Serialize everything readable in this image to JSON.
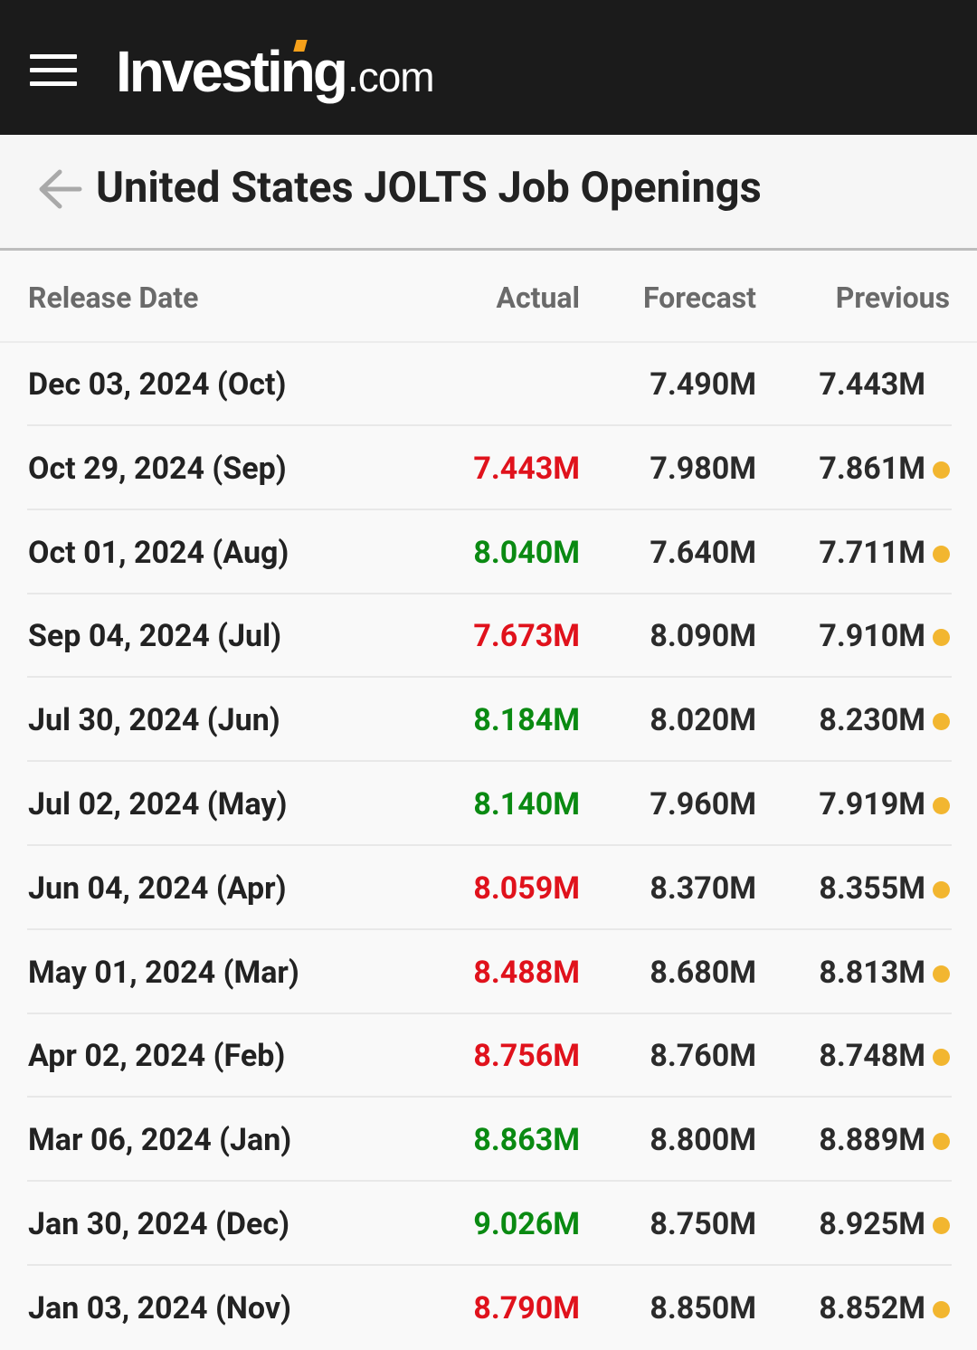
{
  "colors": {
    "header_bg": "#1b1b1b",
    "logo_accent": "#f5a01a",
    "positive": "#0a8a12",
    "negative": "#e0121c",
    "revised_dot": "#f2b630"
  },
  "header": {
    "logo_main": "Investing",
    "logo_suffix": ".com",
    "menu_icon": "hamburger-menu-icon"
  },
  "page": {
    "title": "United States JOLTS Job Openings",
    "back_icon": "arrow-left-icon"
  },
  "table": {
    "columns": [
      "Release Date",
      "Actual",
      "Forecast",
      "Previous"
    ],
    "rows": [
      {
        "date": "Dec 03, 2024 (Oct)",
        "actual": "",
        "actual_status": "none",
        "forecast": "7.490M",
        "previous": "7.443M",
        "revised": false
      },
      {
        "date": "Oct 29, 2024 (Sep)",
        "actual": "7.443M",
        "actual_status": "negative",
        "forecast": "7.980M",
        "previous": "7.861M",
        "revised": true
      },
      {
        "date": "Oct 01, 2024 (Aug)",
        "actual": "8.040M",
        "actual_status": "positive",
        "forecast": "7.640M",
        "previous": "7.711M",
        "revised": true
      },
      {
        "date": "Sep 04, 2024 (Jul)",
        "actual": "7.673M",
        "actual_status": "negative",
        "forecast": "8.090M",
        "previous": "7.910M",
        "revised": true
      },
      {
        "date": "Jul 30, 2024 (Jun)",
        "actual": "8.184M",
        "actual_status": "positive",
        "forecast": "8.020M",
        "previous": "8.230M",
        "revised": true
      },
      {
        "date": "Jul 02, 2024 (May)",
        "actual": "8.140M",
        "actual_status": "positive",
        "forecast": "7.960M",
        "previous": "7.919M",
        "revised": true
      },
      {
        "date": "Jun 04, 2024 (Apr)",
        "actual": "8.059M",
        "actual_status": "negative",
        "forecast": "8.370M",
        "previous": "8.355M",
        "revised": true
      },
      {
        "date": "May 01, 2024 (Mar)",
        "actual": "8.488M",
        "actual_status": "negative",
        "forecast": "8.680M",
        "previous": "8.813M",
        "revised": true
      },
      {
        "date": "Apr 02, 2024 (Feb)",
        "actual": "8.756M",
        "actual_status": "negative",
        "forecast": "8.760M",
        "previous": "8.748M",
        "revised": true
      },
      {
        "date": "Mar 06, 2024 (Jan)",
        "actual": "8.863M",
        "actual_status": "positive",
        "forecast": "8.800M",
        "previous": "8.889M",
        "revised": true
      },
      {
        "date": "Jan 30, 2024 (Dec)",
        "actual": "9.026M",
        "actual_status": "positive",
        "forecast": "8.750M",
        "previous": "8.925M",
        "revised": true
      },
      {
        "date": "Jan 03, 2024 (Nov)",
        "actual": "8.790M",
        "actual_status": "negative",
        "forecast": "8.850M",
        "previous": "8.852M",
        "revised": true
      }
    ]
  }
}
